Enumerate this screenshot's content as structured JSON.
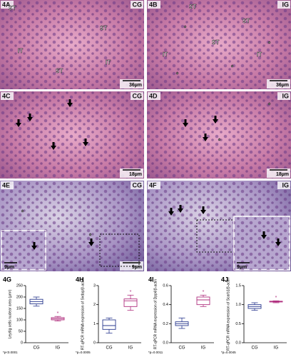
{
  "micrographs": [
    {
      "label": "4A",
      "group": "CG",
      "scale_bar": "36µm",
      "annotations": [
        "ST",
        "ST",
        "IT",
        "ST",
        "IT"
      ]
    },
    {
      "label": "4B",
      "group": "IG",
      "scale_bar": "36µm",
      "annotations": [
        "ST",
        "ST",
        "ST",
        "IT",
        "IT",
        "*",
        "*",
        "*",
        "*"
      ]
    },
    {
      "label": "4C",
      "group": "CG",
      "scale_bar": "18µm"
    },
    {
      "label": "4D",
      "group": "IG",
      "scale_bar": "18µm",
      "annotations": [
        "*",
        "*"
      ]
    },
    {
      "label": "4E",
      "group": "CG",
      "scale_bar": "9µm",
      "inset_scale_bar": "9µm",
      "annotations": [
        "*",
        "*"
      ]
    },
    {
      "label": "4F",
      "group": "IG",
      "scale_bar": "9µm",
      "inset_scale_bar": "9µm"
    }
  ],
  "chart_data": [
    {
      "type": "box",
      "label": "4G",
      "y_label": "Leydig cells nuclear area (µm²)",
      "note": "*p<0.0001",
      "marker": "*",
      "categories": [
        "CG",
        "IG"
      ],
      "colors": [
        "#2b3a8f",
        "#b0307f"
      ],
      "boxes": [
        {
          "min": 160,
          "q1": 170,
          "median": 180,
          "q3": 190,
          "max": 200
        },
        {
          "min": 95,
          "q1": 100,
          "median": 105,
          "q3": 110,
          "max": 115
        }
      ],
      "ylim": [
        0,
        250
      ],
      "yticks": [
        0,
        50,
        100,
        150,
        200,
        250
      ]
    },
    {
      "type": "box",
      "label": "4H",
      "y_label": "RT-qPCR mRNA expression of Svdap/β-actin",
      "note": "*p=0.0005",
      "marker": "*",
      "categories": [
        "CG",
        "IG"
      ],
      "colors": [
        "#2b3a8f",
        "#b0307f"
      ],
      "boxes": [
        {
          "min": 0.5,
          "q1": 0.7,
          "median": 0.9,
          "q3": 1.2,
          "max": 1.3
        },
        {
          "min": 1.7,
          "q1": 1.9,
          "median": 2.2,
          "q3": 2.3,
          "max": 2.5
        }
      ],
      "ylim": [
        0,
        3
      ],
      "yticks": [
        0,
        1,
        2,
        3
      ]
    },
    {
      "type": "box",
      "label": "4I",
      "y_label": "RT-qPCR mRNA expression of Dpp4/β-actin",
      "note": "*p=0.0011",
      "marker": "*",
      "categories": [
        "CG",
        "IG"
      ],
      "colors": [
        "#2b3a8f",
        "#b0307f"
      ],
      "boxes": [
        {
          "min": 0.15,
          "q1": 0.18,
          "median": 0.2,
          "q3": 0.22,
          "max": 0.26
        },
        {
          "min": 0.38,
          "q1": 0.4,
          "median": 0.45,
          "q3": 0.48,
          "max": 0.5
        }
      ],
      "ylim": [
        0,
        0.6
      ],
      "yticks": [
        {
          "value": 0,
          "label": "0.0"
        },
        0.2,
        0.4,
        0.6
      ]
    },
    {
      "type": "box",
      "label": "4J",
      "y_label": "RT-qPCR mRNA expression of Scarb1/β-actin",
      "note": "*p=0.0045",
      "marker": "*",
      "categories": [
        "CG",
        "IG"
      ],
      "colors": [
        "#2b3a8f",
        "#b0307f"
      ],
      "boxes": [
        {
          "min": 0.85,
          "q1": 0.9,
          "median": 0.95,
          "q3": 1.0,
          "max": 1.05
        },
        {
          "min": 1.05,
          "q1": 1.07,
          "median": 1.08,
          "q3": 1.09,
          "max": 1.1
        }
      ],
      "ylim": [
        0,
        1.5
      ],
      "yticks": [
        {
          "value": 0,
          "label": "0.0"
        },
        0.5,
        {
          "value": 1,
          "label": "1.0"
        },
        1.5
      ]
    }
  ]
}
